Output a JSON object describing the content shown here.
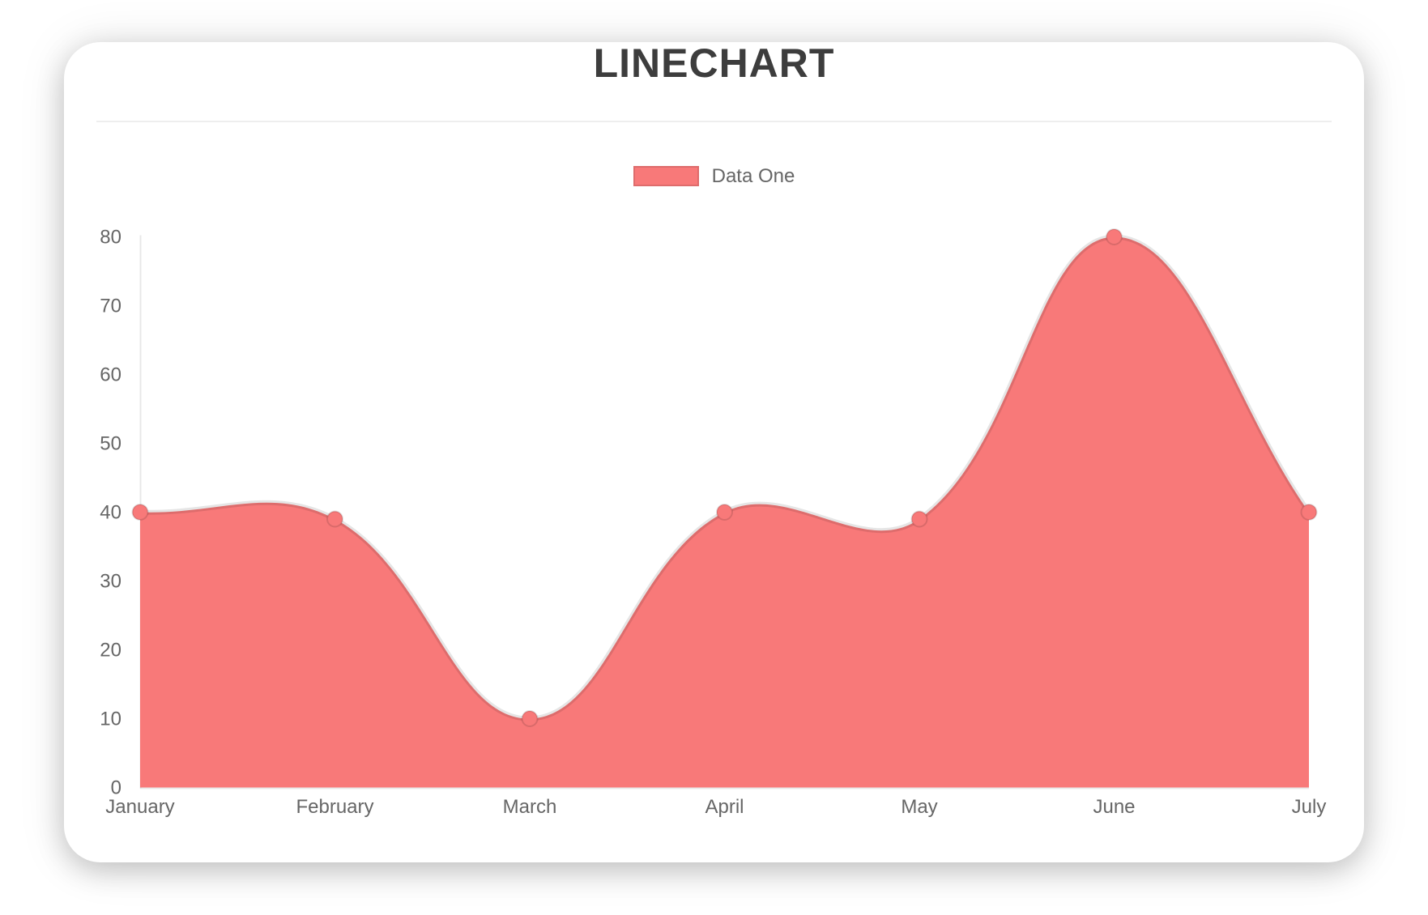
{
  "chart_data": {
    "type": "area",
    "title": "LINECHART",
    "categories": [
      "January",
      "February",
      "March",
      "April",
      "May",
      "June",
      "July"
    ],
    "series": [
      {
        "name": "Data One",
        "values": [
          40,
          39,
          10,
          40,
          39,
          80,
          40
        ],
        "fill_color": "#f87979",
        "line_color": "rgba(0,0,0,0.10)",
        "point_color": "#f87979",
        "point_border_color": "rgba(0,0,0,0.12)"
      }
    ],
    "xlabel": "",
    "ylabel": "",
    "ylim": [
      0,
      80
    ],
    "y_ticks": [
      0,
      10,
      20,
      30,
      40,
      50,
      60,
      70,
      80
    ],
    "grid": false,
    "legend_position": "top",
    "line_tension": 0.4,
    "area_fill": true
  },
  "colors": {
    "accent": "#f87979",
    "axis_line": "rgba(0,0,0,0.09)",
    "tick_text": "#666666",
    "title_text": "#3d3d3d",
    "divider": "#eeeeee"
  }
}
